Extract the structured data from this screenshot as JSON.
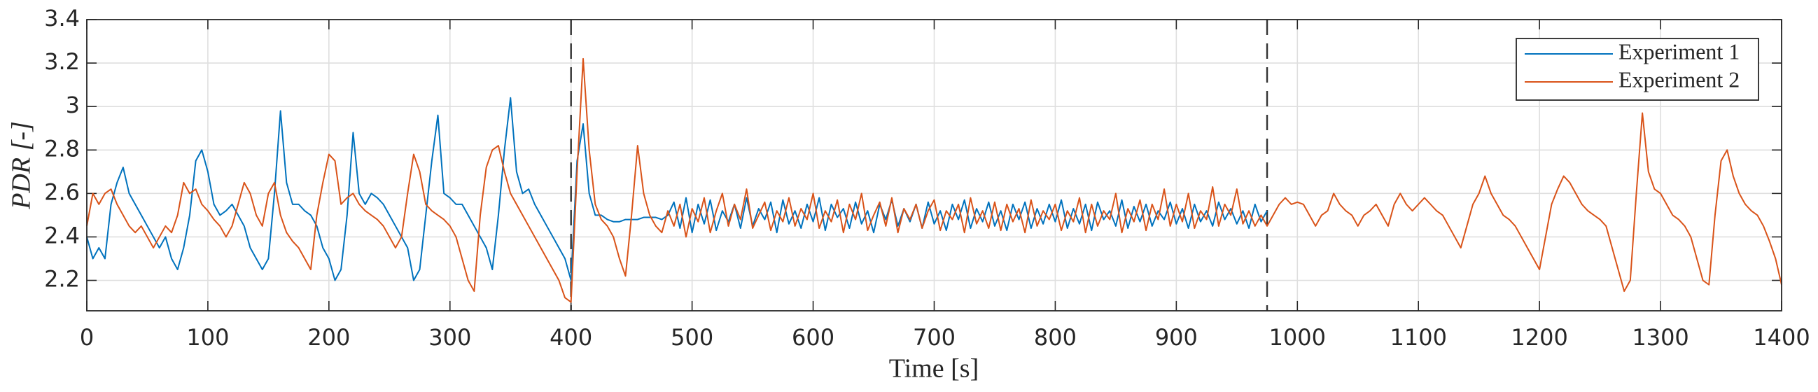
{
  "chart_data": {
    "type": "line",
    "xlabel": "Time [s]",
    "ylabel": "PDR [-]",
    "xlim": [
      0,
      1400
    ],
    "ylim": [
      2.06,
      3.4
    ],
    "xticks": [
      0,
      100,
      200,
      300,
      400,
      500,
      600,
      700,
      800,
      900,
      1000,
      1100,
      1200,
      1300,
      1400
    ],
    "yticks": [
      2.2,
      2.4,
      2.6,
      2.8,
      3,
      3.2,
      3.4
    ],
    "grid": true,
    "legend": "upper right",
    "vlines": [
      400,
      975
    ],
    "x": [
      0,
      5,
      10,
      15,
      20,
      25,
      30,
      35,
      40,
      45,
      50,
      55,
      60,
      65,
      70,
      75,
      80,
      85,
      90,
      95,
      100,
      105,
      110,
      115,
      120,
      125,
      130,
      135,
      140,
      145,
      150,
      155,
      160,
      165,
      170,
      175,
      180,
      185,
      190,
      195,
      200,
      205,
      210,
      215,
      220,
      225,
      230,
      235,
      240,
      245,
      250,
      255,
      260,
      265,
      270,
      275,
      280,
      285,
      290,
      295,
      300,
      305,
      310,
      315,
      320,
      325,
      330,
      335,
      340,
      345,
      350,
      355,
      360,
      365,
      370,
      375,
      380,
      385,
      390,
      395,
      400,
      405,
      410,
      415,
      420,
      425,
      430,
      435,
      440,
      445,
      450,
      455,
      460,
      465,
      470,
      475,
      480,
      485,
      490,
      495,
      500,
      505,
      510,
      515,
      520,
      525,
      530,
      535,
      540,
      545,
      550,
      555,
      560,
      565,
      570,
      575,
      580,
      585,
      590,
      595,
      600,
      605,
      610,
      615,
      620,
      625,
      630,
      635,
      640,
      645,
      650,
      655,
      660,
      665,
      670,
      675,
      680,
      685,
      690,
      695,
      700,
      705,
      710,
      715,
      720,
      725,
      730,
      735,
      740,
      745,
      750,
      755,
      760,
      765,
      770,
      775,
      780,
      785,
      790,
      795,
      800,
      805,
      810,
      815,
      820,
      825,
      830,
      835,
      840,
      845,
      850,
      855,
      860,
      865,
      870,
      875,
      880,
      885,
      890,
      895,
      900,
      905,
      910,
      915,
      920,
      925,
      930,
      935,
      940,
      945,
      950,
      955,
      960,
      965,
      970,
      975,
      980,
      985,
      990,
      995,
      1000,
      1005,
      1010,
      1015,
      1020,
      1025,
      1030,
      1035,
      1040,
      1045,
      1050,
      1055,
      1060,
      1065,
      1070,
      1075,
      1080,
      1085,
      1090,
      1095,
      1100,
      1105,
      1110,
      1115,
      1120,
      1125,
      1130,
      1135,
      1140,
      1145,
      1150,
      1155,
      1160,
      1165,
      1170,
      1175,
      1180,
      1185,
      1190,
      1195,
      1200,
      1205,
      1210,
      1215,
      1220,
      1225,
      1230,
      1235,
      1240,
      1245,
      1250,
      1255,
      1260,
      1265,
      1270,
      1275,
      1280,
      1285,
      1290,
      1295,
      1300,
      1305,
      1310,
      1315,
      1320,
      1325,
      1330,
      1335,
      1340,
      1345,
      1350,
      1355,
      1360,
      1365,
      1370,
      1375,
      1380,
      1385,
      1390,
      1395,
      1400
    ],
    "series": [
      {
        "name": "Experiment 1",
        "color": "#0072bd",
        "values": [
          2.4,
          2.3,
          2.35,
          2.3,
          2.55,
          2.65,
          2.72,
          2.6,
          2.55,
          2.5,
          2.45,
          2.4,
          2.35,
          2.4,
          2.3,
          2.25,
          2.35,
          2.5,
          2.75,
          2.8,
          2.7,
          2.55,
          2.5,
          2.52,
          2.55,
          2.5,
          2.45,
          2.35,
          2.3,
          2.25,
          2.3,
          2.6,
          2.98,
          2.65,
          2.55,
          2.55,
          2.52,
          2.5,
          2.45,
          2.35,
          2.3,
          2.2,
          2.25,
          2.5,
          2.88,
          2.6,
          2.55,
          2.6,
          2.58,
          2.55,
          2.5,
          2.45,
          2.4,
          2.35,
          2.2,
          2.25,
          2.5,
          2.75,
          2.96,
          2.6,
          2.58,
          2.55,
          2.55,
          2.5,
          2.45,
          2.4,
          2.35,
          2.25,
          2.5,
          2.8,
          3.04,
          2.7,
          2.6,
          2.62,
          2.55,
          2.5,
          2.45,
          2.4,
          2.35,
          2.3,
          2.2,
          2.75,
          2.92,
          2.6,
          2.5,
          2.5,
          2.48,
          2.47,
          2.47,
          2.48,
          2.48,
          2.48,
          2.49,
          2.49,
          2.49,
          2.48,
          2.5,
          2.56,
          2.44,
          2.58,
          2.42,
          2.55,
          2.46,
          2.57,
          2.43,
          2.52,
          2.47,
          2.55,
          2.44,
          2.58,
          2.45,
          2.53,
          2.48,
          2.56,
          2.42,
          2.57,
          2.46,
          2.52,
          2.44,
          2.55,
          2.47,
          2.58,
          2.43,
          2.55,
          2.49,
          2.53,
          2.44,
          2.56,
          2.46,
          2.52,
          2.42,
          2.55,
          2.48,
          2.57,
          2.45,
          2.53,
          2.47,
          2.55,
          2.44,
          2.56,
          2.46,
          2.52,
          2.43,
          2.55,
          2.48,
          2.57,
          2.44,
          2.53,
          2.47,
          2.56,
          2.45,
          2.52,
          2.43,
          2.55,
          2.48,
          2.56,
          2.44,
          2.53,
          2.46,
          2.55,
          2.47,
          2.57,
          2.44,
          2.53,
          2.46,
          2.55,
          2.43,
          2.56,
          2.48,
          2.52,
          2.45,
          2.57,
          2.44,
          2.54,
          2.47,
          2.55,
          2.45,
          2.52,
          2.48,
          2.56,
          2.46,
          2.53,
          2.44,
          2.55,
          2.47,
          2.52,
          2.45,
          2.56,
          2.48,
          2.53,
          2.46,
          2.52,
          2.44,
          2.55,
          2.47,
          2.52,
          null,
          null,
          null,
          null,
          null,
          null,
          null,
          null,
          null,
          null,
          null,
          null,
          null,
          null,
          null,
          null,
          null,
          null,
          null,
          null,
          null,
          null,
          null,
          null,
          null,
          null,
          null,
          null,
          null,
          null,
          null,
          null,
          null,
          null,
          null,
          null,
          null,
          null,
          null,
          null,
          null,
          null,
          null,
          null,
          null,
          null,
          null,
          null,
          null,
          null,
          null,
          null,
          null,
          null,
          null,
          null,
          null,
          null,
          null,
          null,
          null,
          null,
          null,
          null,
          null,
          null,
          null,
          null,
          null,
          null,
          null,
          null,
          null,
          null,
          null,
          null,
          null,
          null,
          null,
          null,
          null,
          null,
          null,
          null,
          null
        ]
      },
      {
        "name": "Experiment 2",
        "color": "#d95319",
        "values": [
          2.45,
          2.6,
          2.55,
          2.6,
          2.62,
          2.55,
          2.5,
          2.45,
          2.42,
          2.45,
          2.4,
          2.35,
          2.4,
          2.45,
          2.42,
          2.5,
          2.65,
          2.6,
          2.62,
          2.55,
          2.52,
          2.48,
          2.45,
          2.4,
          2.45,
          2.55,
          2.65,
          2.6,
          2.5,
          2.45,
          2.6,
          2.65,
          2.5,
          2.42,
          2.38,
          2.35,
          2.3,
          2.25,
          2.5,
          2.65,
          2.78,
          2.75,
          2.55,
          2.58,
          2.6,
          2.55,
          2.52,
          2.5,
          2.48,
          2.45,
          2.4,
          2.35,
          2.4,
          2.6,
          2.78,
          2.7,
          2.55,
          2.52,
          2.5,
          2.48,
          2.45,
          2.4,
          2.3,
          2.2,
          2.15,
          2.5,
          2.72,
          2.8,
          2.82,
          2.7,
          2.6,
          2.55,
          2.5,
          2.45,
          2.4,
          2.35,
          2.3,
          2.25,
          2.2,
          2.12,
          2.1,
          2.7,
          3.22,
          2.8,
          2.55,
          2.48,
          2.45,
          2.4,
          2.3,
          2.22,
          2.5,
          2.82,
          2.6,
          2.5,
          2.45,
          2.42,
          2.52,
          2.45,
          2.55,
          2.4,
          2.53,
          2.47,
          2.58,
          2.42,
          2.52,
          2.6,
          2.45,
          2.55,
          2.48,
          2.62,
          2.44,
          2.5,
          2.56,
          2.43,
          2.52,
          2.47,
          2.58,
          2.45,
          2.53,
          2.48,
          2.6,
          2.44,
          2.52,
          2.47,
          2.57,
          2.42,
          2.55,
          2.48,
          2.6,
          2.43,
          2.5,
          2.56,
          2.45,
          2.58,
          2.42,
          2.53,
          2.48,
          2.55,
          2.44,
          2.52,
          2.57,
          2.43,
          2.52,
          2.48,
          2.55,
          2.42,
          2.58,
          2.46,
          2.52,
          2.44,
          2.56,
          2.43,
          2.55,
          2.47,
          2.53,
          2.42,
          2.57,
          2.45,
          2.52,
          2.48,
          2.55,
          2.43,
          2.52,
          2.47,
          2.58,
          2.42,
          2.55,
          2.45,
          2.52,
          2.48,
          2.6,
          2.42,
          2.53,
          2.47,
          2.57,
          2.43,
          2.55,
          2.48,
          2.62,
          2.45,
          2.55,
          2.47,
          2.6,
          2.44,
          2.52,
          2.48,
          2.63,
          2.45,
          2.55,
          2.5,
          2.62,
          2.46,
          2.52,
          2.45,
          2.5,
          2.45,
          2.5,
          2.55,
          2.58,
          2.55,
          2.56,
          2.55,
          2.5,
          2.45,
          2.5,
          2.52,
          2.6,
          2.55,
          2.52,
          2.5,
          2.45,
          2.5,
          2.52,
          2.55,
          2.5,
          2.45,
          2.55,
          2.6,
          2.55,
          2.52,
          2.55,
          2.58,
          2.55,
          2.52,
          2.5,
          2.45,
          2.4,
          2.35,
          2.45,
          2.55,
          2.6,
          2.68,
          2.6,
          2.55,
          2.5,
          2.48,
          2.45,
          2.4,
          2.35,
          2.3,
          2.25,
          2.4,
          2.55,
          2.62,
          2.68,
          2.65,
          2.6,
          2.55,
          2.52,
          2.5,
          2.48,
          2.45,
          2.35,
          2.25,
          2.15,
          2.2,
          2.6,
          2.97,
          2.7,
          2.62,
          2.6,
          2.55,
          2.5,
          2.48,
          2.45,
          2.4,
          2.3,
          2.2,
          2.18,
          2.5,
          2.75,
          2.8,
          2.68,
          2.6,
          2.55,
          2.52,
          2.5,
          2.45,
          2.38,
          2.3,
          2.18
        ]
      }
    ]
  }
}
